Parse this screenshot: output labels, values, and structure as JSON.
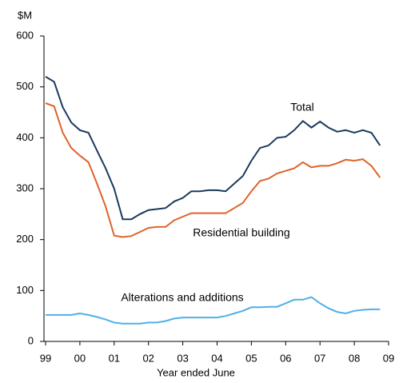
{
  "chart_data": {
    "type": "line",
    "ylabel": "$M",
    "xlabel": "Year ended June",
    "annotations": [
      "Total",
      "Residential building",
      "Alterations and additions"
    ],
    "x": [
      1999,
      1999.25,
      1999.5,
      1999.75,
      2000,
      2000.25,
      2000.5,
      2000.75,
      2001,
      2001.25,
      2001.5,
      2001.75,
      2002,
      2002.25,
      2002.5,
      2002.75,
      2003,
      2003.25,
      2003.5,
      2003.75,
      2004,
      2004.25,
      2004.5,
      2004.75,
      2005,
      2005.25,
      2005.5,
      2005.75,
      2006,
      2006.25,
      2006.5,
      2006.75,
      2007,
      2007.25,
      2007.5,
      2007.75,
      2008,
      2008.25,
      2008.5,
      2008.75
    ],
    "series": [
      {
        "name": "Total",
        "color": "#1b3a5c",
        "values": [
          520,
          510,
          460,
          430,
          415,
          410,
          375,
          340,
          300,
          240,
          240,
          250,
          258,
          260,
          262,
          275,
          282,
          295,
          295,
          297,
          297,
          295,
          310,
          325,
          355,
          380,
          385,
          400,
          402,
          415,
          433,
          420,
          432,
          420,
          412,
          415,
          410,
          415,
          410,
          385
        ]
      },
      {
        "name": "Residential building",
        "color": "#e0622a",
        "values": [
          468,
          462,
          410,
          380,
          365,
          352,
          310,
          265,
          208,
          205,
          207,
          215,
          223,
          225,
          225,
          238,
          245,
          252,
          252,
          252,
          252,
          252,
          262,
          272,
          295,
          315,
          320,
          330,
          335,
          340,
          352,
          342,
          345,
          345,
          350,
          357,
          355,
          358,
          345,
          322
        ]
      },
      {
        "name": "Alterations and additions",
        "color": "#4fb0e8",
        "values": [
          52,
          52,
          52,
          52,
          55,
          52,
          48,
          43,
          37,
          35,
          35,
          35,
          37,
          37,
          40,
          45,
          47,
          47,
          47,
          47,
          47,
          50,
          55,
          60,
          67,
          67,
          68,
          68,
          75,
          82,
          82,
          87,
          75,
          65,
          58,
          55,
          60,
          62,
          63,
          63
        ]
      }
    ],
    "xlim": [
      1999,
      2009
    ],
    "xticks": [
      {
        "value": 1999,
        "label": "99"
      },
      {
        "value": 2000,
        "label": "00"
      },
      {
        "value": 2001,
        "label": "01"
      },
      {
        "value": 2002,
        "label": "02"
      },
      {
        "value": 2003,
        "label": "03"
      },
      {
        "value": 2004,
        "label": "04"
      },
      {
        "value": 2005,
        "label": "05"
      },
      {
        "value": 2006,
        "label": "06"
      },
      {
        "value": 2007,
        "label": "07"
      },
      {
        "value": 2008,
        "label": "08"
      },
      {
        "value": 2009,
        "label": "09"
      }
    ],
    "ylim": [
      0,
      600
    ],
    "yticks": [
      0,
      100,
      200,
      300,
      400,
      500,
      600
    ],
    "grid": false
  }
}
